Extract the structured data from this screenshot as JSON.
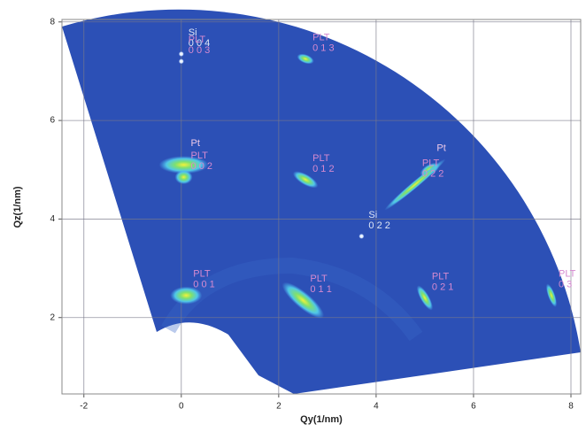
{
  "chart_data": {
    "type": "map",
    "x_label": "Qy(1/nm)",
    "y_label": "Qz(1/nm)",
    "xlim": [
      -2.45,
      8.2
    ],
    "ylim": [
      0.45,
      8.05
    ],
    "xticks": [
      -2,
      0,
      2,
      4,
      6,
      8
    ],
    "yticks": [
      2,
      4,
      6,
      8
    ],
    "grid": true,
    "color": "#2c50b6",
    "phase_colors": {
      "Si": "#dfe6f5",
      "PLT": "#d58ad0",
      "Pt": "#ecc8e8"
    },
    "peaks": [
      {
        "phase": "Si",
        "hkl": "0 0 4",
        "x": 0,
        "y": 7.35
      },
      {
        "phase": "PLT",
        "hkl": "0 0 3",
        "x": 0,
        "y": 7.2
      },
      {
        "phase": "PLT",
        "hkl": "0 1 3",
        "x": 2.55,
        "y": 7.25
      },
      {
        "phase": "Pt",
        "x": 0.05,
        "y": 5.1
      },
      {
        "phase": "PLT",
        "hkl": "0 0 2",
        "x": 0.05,
        "y": 4.85
      },
      {
        "phase": "PLT",
        "hkl": "0 1 2",
        "x": 2.55,
        "y": 4.8
      },
      {
        "phase": "Pt",
        "x": 5.1,
        "y": 5.0
      },
      {
        "phase": "PLT",
        "hkl": "0 2 2",
        "x": 4.8,
        "y": 4.7
      },
      {
        "phase": "Si",
        "hkl": "0 2 2",
        "x": 3.7,
        "y": 3.65
      },
      {
        "phase": "PLT",
        "hkl": "0 0 1",
        "x": 0.1,
        "y": 2.45
      },
      {
        "phase": "PLT",
        "hkl": "0 1 1",
        "x": 2.5,
        "y": 2.35
      },
      {
        "phase": "PLT",
        "hkl": "0 2 1",
        "x": 5.0,
        "y": 2.4
      },
      {
        "phase": "PLT",
        "hkl": "0 3",
        "x": 7.6,
        "y": 2.45
      }
    ]
  }
}
